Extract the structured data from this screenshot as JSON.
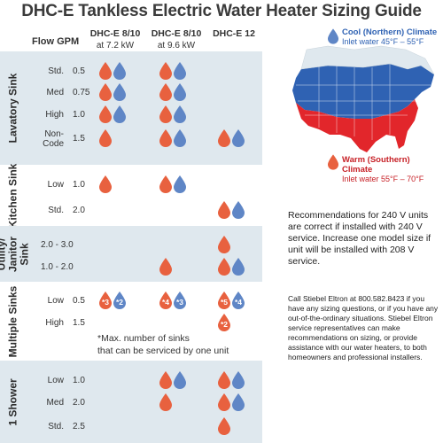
{
  "title": "DHC-E Tankless Electric Water Heater Sizing Guide",
  "header": {
    "flow": "Flow  GPM",
    "columns": [
      {
        "name": "DHC-E 8/10",
        "sub": "at 7.2 kW"
      },
      {
        "name": "DHC-E 8/10",
        "sub": "at 9.6 kW"
      },
      {
        "name": "DHC-E 12",
        "sub": ""
      }
    ]
  },
  "groups": [
    {
      "label": "Lavatory Sink",
      "rows": [
        {
          "level": "Std.",
          "flow": "0.5",
          "cells": [
            [
              "r",
              "b"
            ],
            [
              "r",
              "b"
            ],
            []
          ]
        },
        {
          "level": "Med",
          "flow": "0.75",
          "cells": [
            [
              "r",
              "b"
            ],
            [
              "r",
              "b"
            ],
            []
          ]
        },
        {
          "level": "High",
          "flow": "1.0",
          "cells": [
            [
              "r",
              "b"
            ],
            [
              "r",
              "b"
            ],
            []
          ]
        },
        {
          "level": "Non-\nCode",
          "flow": "1.5",
          "cells": [
            [
              "r"
            ],
            [
              "r",
              "b"
            ],
            [
              "r",
              "b"
            ]
          ]
        }
      ]
    },
    {
      "label": "Kitchen Sink",
      "rows": [
        {
          "level": "Low",
          "flow": "1.0",
          "cells": [
            [
              "r"
            ],
            [
              "r",
              "b"
            ],
            []
          ]
        },
        {
          "level": "Std.",
          "flow": "2.0",
          "cells": [
            [],
            [],
            [
              "r",
              "b"
            ]
          ]
        }
      ]
    },
    {
      "label": "Utility/\nJanitor\nSink",
      "rows": [
        {
          "level": "",
          "flow": "2.0 - 3.0",
          "cells": [
            [],
            [],
            [
              "r"
            ]
          ]
        },
        {
          "level": "",
          "flow": "1.0 - 2.0",
          "cells": [
            [],
            [
              "r"
            ],
            [
              "r",
              "b"
            ]
          ]
        }
      ]
    },
    {
      "label": "Multiple Sinks",
      "rows": [
        {
          "level": "Low",
          "flow": "0.5",
          "cells": [
            [
              "r*3",
              "b*2"
            ],
            [
              "r*4",
              "b*3"
            ],
            [
              "r*5",
              "b*4"
            ]
          ]
        },
        {
          "level": "High",
          "flow": "1.5",
          "cells": [
            [],
            [],
            [
              "r*2"
            ]
          ]
        }
      ]
    },
    {
      "label": "1 Shower",
      "rows": [
        {
          "level": "Low",
          "flow": "1.0",
          "cells": [
            [],
            [
              "r",
              "b"
            ],
            [
              "r",
              "b"
            ]
          ]
        },
        {
          "level": "Med",
          "flow": "2.0",
          "cells": [
            [],
            [
              "r"
            ],
            [
              "r",
              "b"
            ]
          ]
        },
        {
          "level": "Std.",
          "flow": "2.5",
          "cells": [
            [],
            [],
            [
              "r"
            ]
          ]
        }
      ]
    }
  ],
  "note": "*Max. number of sinks\nthat can be serviced by one unit",
  "map": {
    "cool_title": "Cool (Northern) Climate",
    "cool_sub": "Inlet water 45°F – 55°F",
    "warm_title": "Warm (Southern) Climate",
    "warm_sub": "Inlet water 55°F – 70°F",
    "cool_color": "#2f62b3",
    "warm_color": "#e2262b"
  },
  "recommendation": "Recommendations for 240 V units are correct if installed with 240 V service. Increase one model size if unit will be installed with 208 V service.",
  "contact": "Call Stiebel Eltron at 800.582.8423 if you have any sizing questions, or if you have any out-of-the-ordinary situations. Stiebel Eltron service representatives can make recommendations on sizing, or provide assistance with our water heaters, to both homeowners and professional installers.",
  "colors": {
    "red_drop": "#e8613f",
    "blue_drop": "#5f86c6",
    "shade": "#dfe8ee"
  }
}
